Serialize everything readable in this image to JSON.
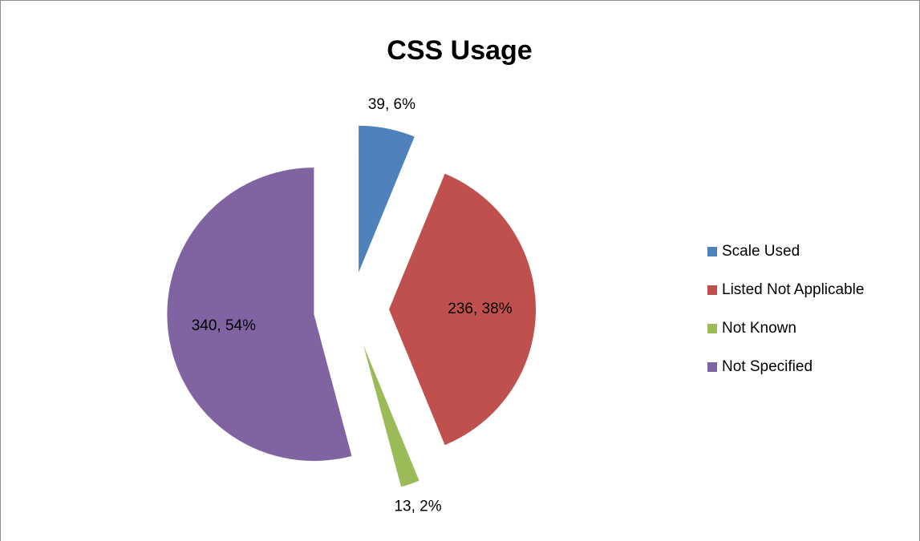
{
  "chart_data": {
    "type": "pie",
    "title": "CSS Usage",
    "categories": [
      "Scale Used",
      "Listed Not Applicable",
      "Not Known",
      "Not Specified"
    ],
    "values": [
      39,
      236,
      13,
      340
    ],
    "value_labels": [
      "39, 6%",
      "236, 38%",
      "13, 2%",
      "340, 54%"
    ],
    "colors": [
      "#4f81bd",
      "#c0504d",
      "#9bbb59",
      "#8064a2"
    ],
    "exploded": true,
    "legend": "right"
  }
}
